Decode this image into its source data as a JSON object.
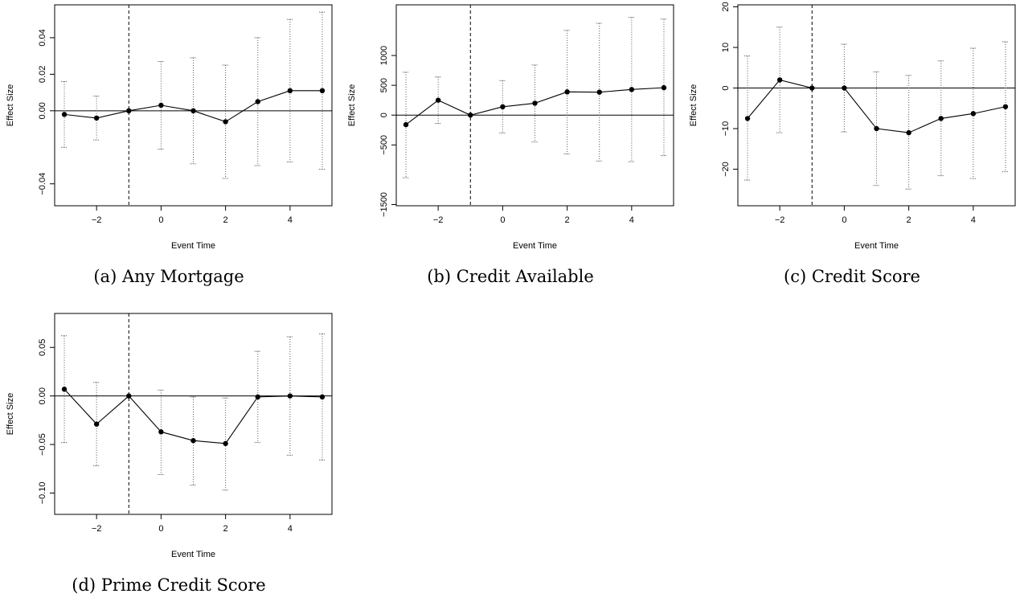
{
  "chart_data": [
    {
      "type": "line",
      "caption": "(a) Any Mortgage",
      "xlabel": "Event Time",
      "ylabel": "Effect Size",
      "x": [
        -3,
        -2,
        -1,
        0,
        1,
        2,
        3,
        4,
        5
      ],
      "xticks": [
        -2,
        0,
        2,
        4
      ],
      "xtick_labels": [
        "−2",
        "0",
        "2",
        "4"
      ],
      "xlim": [
        -3.3,
        5.3
      ],
      "ylim": [
        -0.052,
        0.058
      ],
      "yticks": [
        -0.04,
        0.0,
        0.02,
        0.04
      ],
      "ytick_labels": [
        "−0.04",
        "0.00",
        "0.02",
        "0.04"
      ],
      "values": [
        -0.002,
        -0.004,
        0.0,
        0.003,
        0.0,
        -0.006,
        0.005,
        0.011,
        0.011
      ],
      "ci_low": [
        -0.02,
        -0.016,
        0.0,
        -0.021,
        -0.029,
        -0.037,
        -0.03,
        -0.028,
        -0.032
      ],
      "ci_high": [
        0.016,
        0.008,
        0.0,
        0.027,
        0.029,
        0.025,
        0.04,
        0.05,
        0.054
      ],
      "event_line_x": -1,
      "zero_line": 0
    },
    {
      "type": "line",
      "caption": "(b) Credit Available",
      "xlabel": "Event Time",
      "ylabel": "Effect Size",
      "x": [
        -3,
        -2,
        -1,
        0,
        1,
        2,
        3,
        4,
        5
      ],
      "xticks": [
        -2,
        0,
        2,
        4
      ],
      "xtick_labels": [
        "−2",
        "0",
        "2",
        "4"
      ],
      "xlim": [
        -3.3,
        5.3
      ],
      "ylim": [
        -1520,
        1850
      ],
      "yticks": [
        -1500,
        -500,
        0,
        500,
        1000
      ],
      "ytick_labels": [
        "−1500",
        "−500",
        "0",
        "500",
        "1000"
      ],
      "values": [
        -160,
        250,
        0,
        140,
        200,
        390,
        385,
        430,
        460
      ],
      "ci_low": [
        -1050,
        -140,
        0,
        -300,
        -450,
        -650,
        -770,
        -780,
        -680
      ],
      "ci_high": [
        720,
        640,
        0,
        580,
        840,
        1420,
        1540,
        1640,
        1610
      ],
      "event_line_x": -1,
      "zero_line": 0
    },
    {
      "type": "line",
      "caption": "(c) Credit Score",
      "xlabel": "Event Time",
      "ylabel": "Effect Size",
      "x": [
        -3,
        -2,
        -1,
        0,
        1,
        2,
        3,
        4,
        5
      ],
      "xticks": [
        -2,
        0,
        2,
        4
      ],
      "xtick_labels": [
        "−2",
        "0",
        "2",
        "4"
      ],
      "xlim": [
        -3.3,
        5.3
      ],
      "ylim": [
        -29,
        20.5
      ],
      "yticks": [
        -20,
        -10,
        0,
        10,
        20
      ],
      "ytick_labels": [
        "−20",
        "−10",
        "0",
        "10",
        "20"
      ],
      "values": [
        -7.5,
        2.0,
        0.0,
        0.0,
        -10.0,
        -11.0,
        -7.5,
        -6.3,
        -4.6
      ],
      "ci_low": [
        -22.7,
        -11,
        0.0,
        -10.8,
        -24,
        -24.9,
        -21.6,
        -22.3,
        -20.6
      ],
      "ci_high": [
        7.9,
        15,
        0.0,
        10.8,
        4.0,
        3.1,
        6.7,
        9.8,
        11.4
      ],
      "event_line_x": -1,
      "zero_line": 0
    },
    {
      "type": "line",
      "caption": "(d) Prime Credit Score",
      "xlabel": "Event Time",
      "ylabel": "Effect Size",
      "x": [
        -3,
        -2,
        -1,
        0,
        1,
        2,
        3,
        4,
        5
      ],
      "xticks": [
        -2,
        0,
        2,
        4
      ],
      "xtick_labels": [
        "−2",
        "0",
        "2",
        "4"
      ],
      "xlim": [
        -3.3,
        5.3
      ],
      "ylim": [
        -0.122,
        0.085
      ],
      "yticks": [
        -0.1,
        -0.05,
        0.0,
        0.05
      ],
      "ytick_labels": [
        "−0.10",
        "−0.05",
        "0.00",
        "0.05"
      ],
      "values": [
        0.007,
        -0.029,
        0.0,
        -0.037,
        -0.046,
        -0.049,
        -0.001,
        0.0,
        -0.001
      ],
      "ci_low": [
        -0.048,
        -0.072,
        0.0,
        -0.081,
        -0.092,
        -0.097,
        -0.048,
        -0.061,
        -0.066
      ],
      "ci_high": [
        0.062,
        0.014,
        0.0,
        0.006,
        -0.001,
        -0.002,
        0.046,
        0.061,
        0.064
      ],
      "event_line_x": -1,
      "zero_line": 0
    }
  ]
}
